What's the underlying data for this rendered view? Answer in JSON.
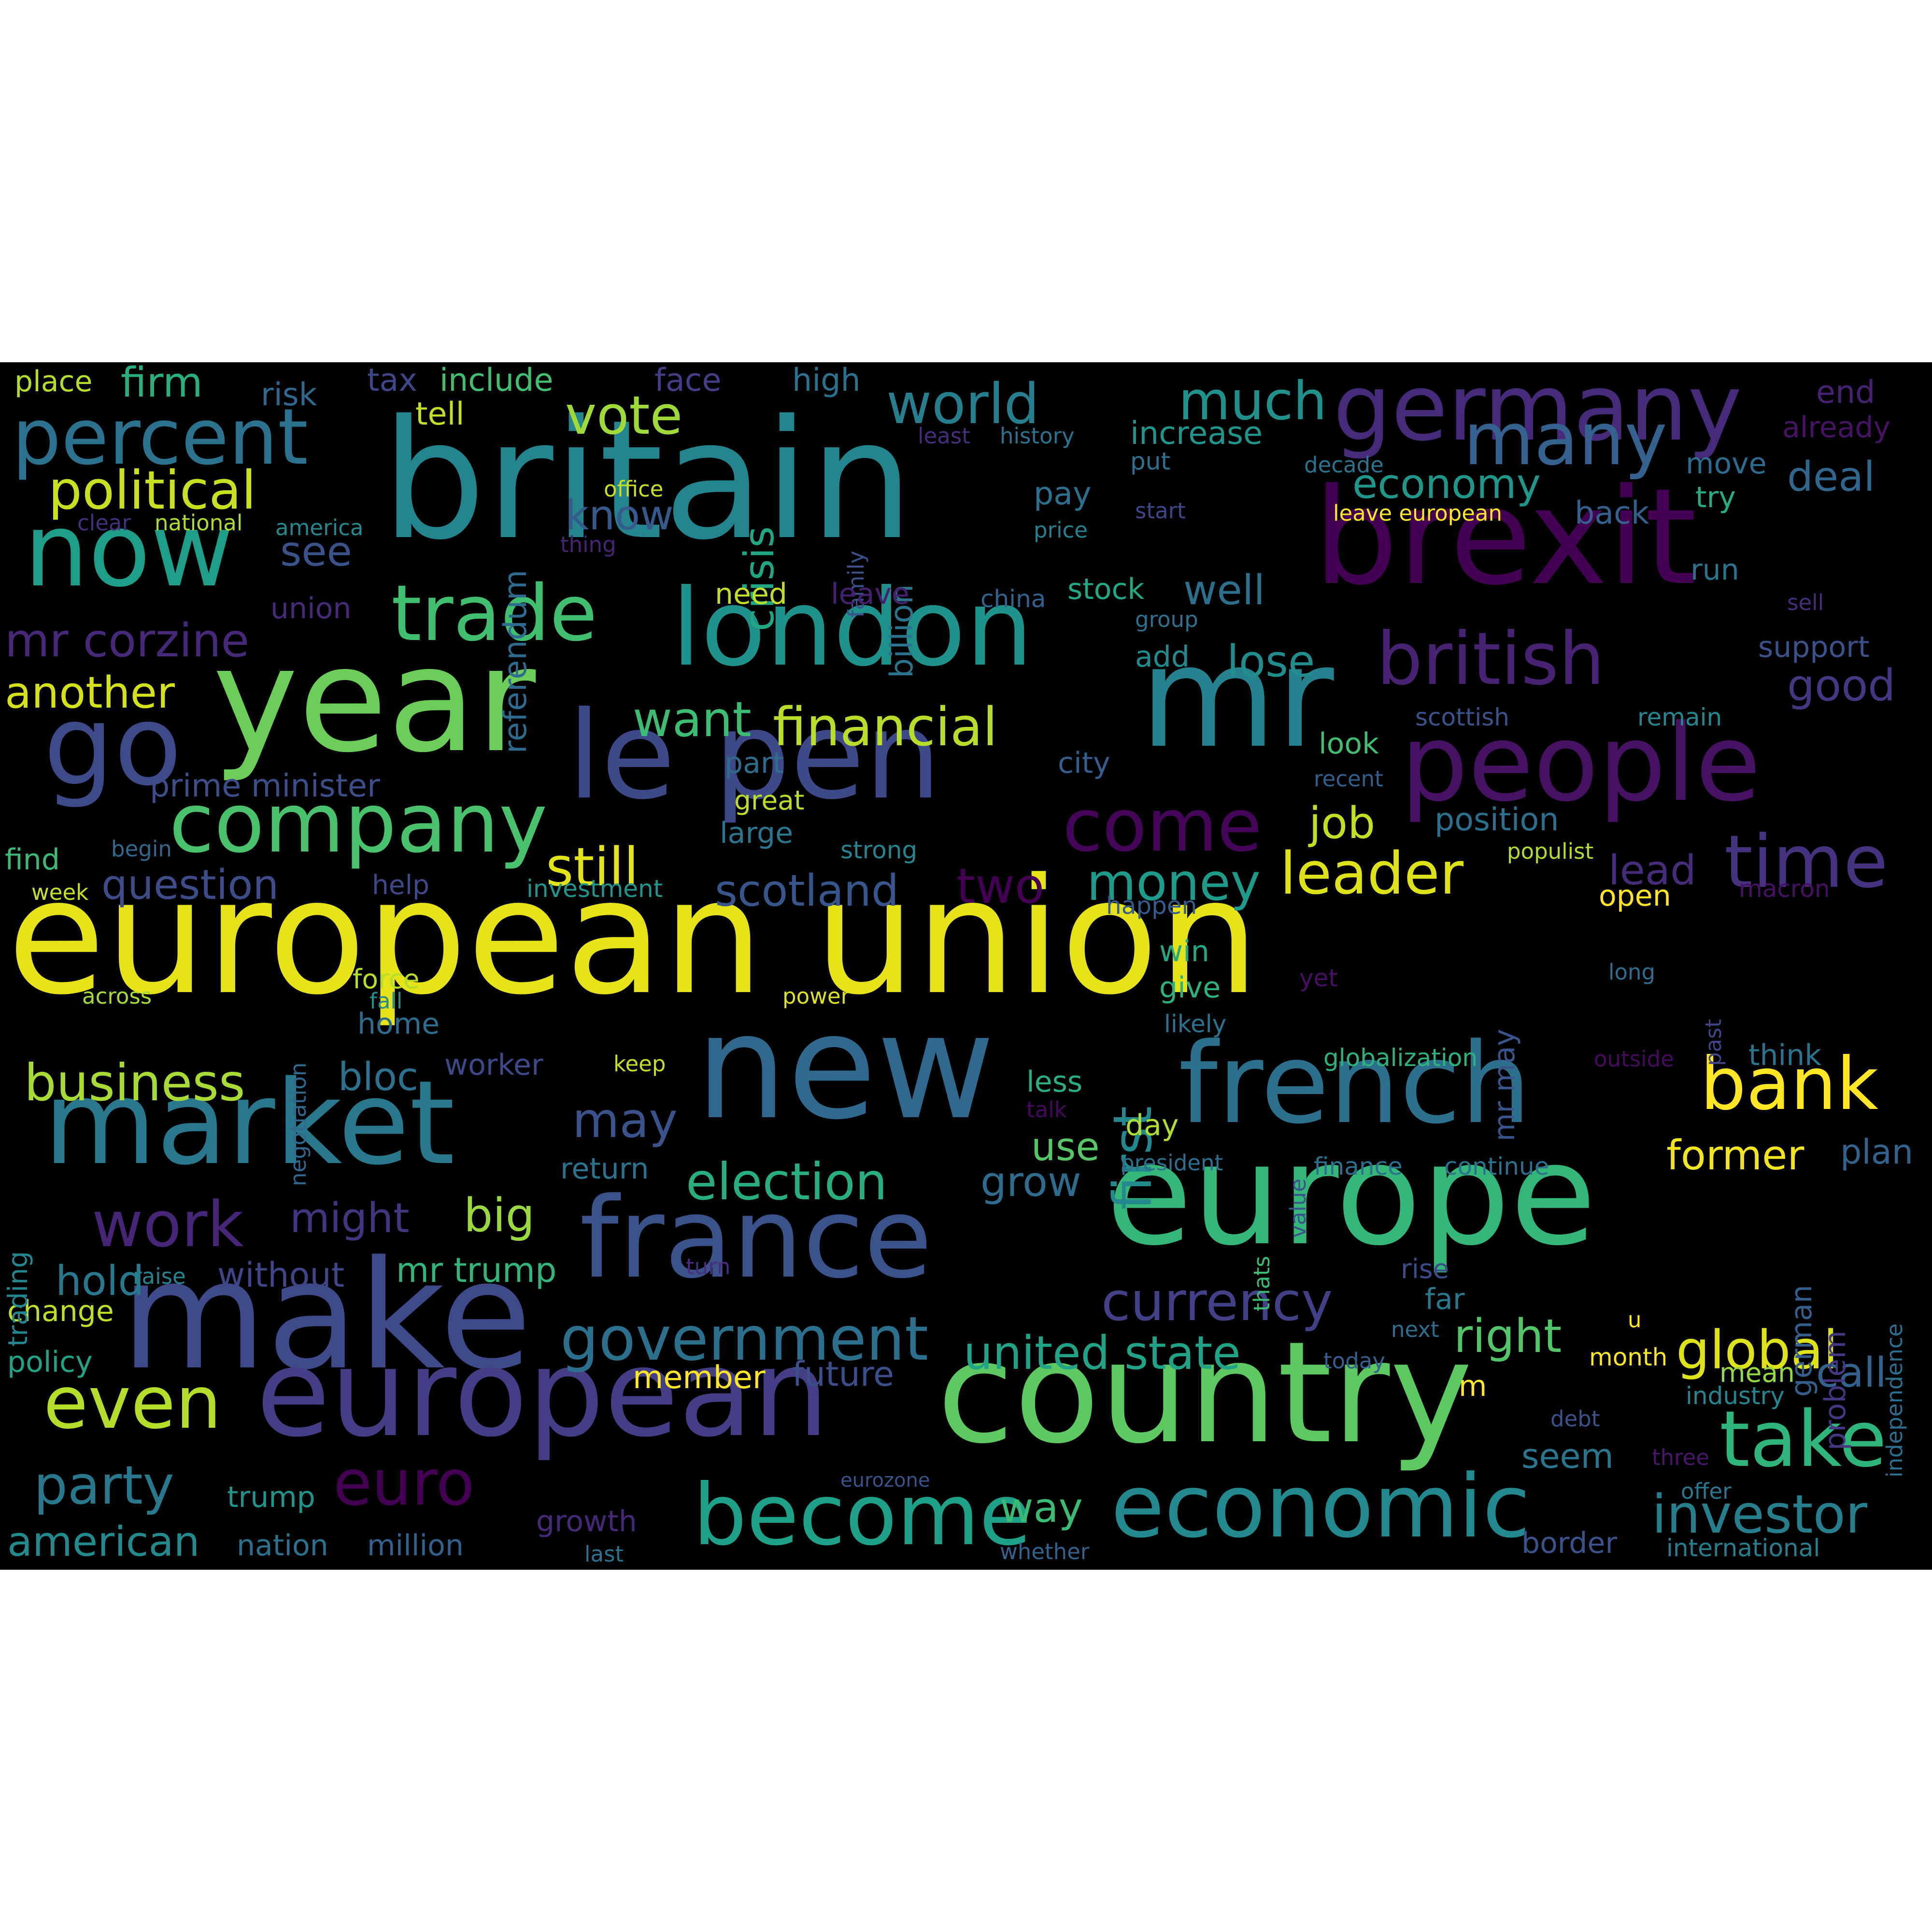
{
  "background_color": "#000000",
  "colormap": "viridis",
  "words": [
    {
      "text": "european union",
      "color": "#e6e419"
    },
    {
      "text": "britain",
      "color": "#25858e"
    },
    {
      "text": "europe",
      "color": "#35b779"
    },
    {
      "text": "brexit",
      "color": "#440154"
    },
    {
      "text": "make",
      "color": "#3e4a89"
    },
    {
      "text": "country",
      "color": "#5ec962"
    },
    {
      "text": "new",
      "color": "#31688e"
    },
    {
      "text": "year",
      "color": "#6ccd5a"
    },
    {
      "text": "mr",
      "color": "#26828e"
    },
    {
      "text": "european",
      "color": "#433e85"
    },
    {
      "text": "le pen",
      "color": "#3e4989"
    },
    {
      "text": "market",
      "color": "#2a788e"
    },
    {
      "text": "london",
      "color": "#20928c"
    },
    {
      "text": "people",
      "color": "#471164"
    },
    {
      "text": "france",
      "color": "#3b528b"
    },
    {
      "text": "french",
      "color": "#2d708e"
    },
    {
      "text": "germany",
      "color": "#472a7a"
    },
    {
      "text": "go",
      "color": "#3e4a89"
    },
    {
      "text": "now",
      "color": "#1f9e89"
    },
    {
      "text": "percent",
      "color": "#2c728e"
    },
    {
      "text": "economic",
      "color": "#23898e"
    },
    {
      "text": "company",
      "color": "#4ac16d"
    },
    {
      "text": "become",
      "color": "#1fa088"
    },
    {
      "text": "many",
      "color": "#34618d"
    },
    {
      "text": "trade",
      "color": "#42be71"
    },
    {
      "text": "take",
      "color": "#2fb47c"
    },
    {
      "text": "british",
      "color": "#482374"
    },
    {
      "text": "time",
      "color": "#46327e"
    },
    {
      "text": "come",
      "color": "#450559"
    },
    {
      "text": "bank",
      "color": "#fde725"
    },
    {
      "text": "world",
      "color": "#277f8e"
    },
    {
      "text": "even",
      "color": "#b5de2b"
    },
    {
      "text": "euro",
      "color": "#440154"
    },
    {
      "text": "work",
      "color": "#482677"
    },
    {
      "text": "government",
      "color": "#2d708e"
    },
    {
      "text": "political",
      "color": "#c8e020"
    },
    {
      "text": "financial",
      "color": "#b8de29"
    },
    {
      "text": "leader",
      "color": "#dde318"
    },
    {
      "text": "much",
      "color": "#21918c"
    },
    {
      "text": "currency",
      "color": "#424086"
    },
    {
      "text": "investor",
      "color": "#277f8e"
    },
    {
      "text": "vote",
      "color": "#a0da39"
    },
    {
      "text": "global",
      "color": "#dde318"
    },
    {
      "text": "election",
      "color": "#29af7f"
    },
    {
      "text": "party",
      "color": "#2a788e"
    },
    {
      "text": "money",
      "color": "#1e9b8a"
    },
    {
      "text": "business",
      "color": "#a8db34"
    },
    {
      "text": "still",
      "color": "#e2e418"
    },
    {
      "text": "scotland",
      "color": "#39568c"
    },
    {
      "text": "first",
      "color": "#23898e"
    },
    {
      "text": "want",
      "color": "#3dbc74"
    },
    {
      "text": "two",
      "color": "#440154"
    },
    {
      "text": "may",
      "color": "#3b528b"
    },
    {
      "text": "crisis",
      "color": "#22a785"
    },
    {
      "text": "economy",
      "color": "#1f988b"
    },
    {
      "text": "mr corzine",
      "color": "#482878"
    },
    {
      "text": "big",
      "color": "#9bd93c"
    },
    {
      "text": "question",
      "color": "#3e4c8a"
    },
    {
      "text": "job",
      "color": "#c2df23"
    },
    {
      "text": "right",
      "color": "#54c568"
    },
    {
      "text": "united state",
      "color": "#20a386"
    },
    {
      "text": "another",
      "color": "#d5e21a"
    },
    {
      "text": "good",
      "color": "#453781"
    },
    {
      "text": "former",
      "color": "#f1e51d"
    },
    {
      "text": "american",
      "color": "#238a8d"
    },
    {
      "text": "lose",
      "color": "#228d8d"
    },
    {
      "text": "deal",
      "color": "#31678e"
    },
    {
      "text": "lead",
      "color": "#472c7a"
    },
    {
      "text": "firm",
      "color": "#2ab07f"
    },
    {
      "text": "see",
      "color": "#3b528b"
    },
    {
      "text": "know",
      "color": "#375a8c"
    },
    {
      "text": "hold",
      "color": "#29798e"
    },
    {
      "text": "might",
      "color": "#453581"
    },
    {
      "text": "grow",
      "color": "#2f6c8e"
    },
    {
      "text": "well",
      "color": "#2e6f8e"
    },
    {
      "text": "use",
      "color": "#56c667"
    },
    {
      "text": "call",
      "color": "#33638d"
    },
    {
      "text": "way",
      "color": "#3cbb75"
    },
    {
      "text": "mr trump",
      "color": "#32b67a"
    },
    {
      "text": "without",
      "color": "#3f4788"
    },
    {
      "text": "bloc",
      "color": "#2d718e"
    },
    {
      "text": "plan",
      "color": "#33638d"
    },
    {
      "text": "pay",
      "color": "#2d718e"
    },
    {
      "text": "future",
      "color": "#3c4f8a"
    },
    {
      "text": "seem",
      "color": "#2b758e"
    },
    {
      "text": "billion",
      "color": "#2c738e"
    },
    {
      "text": "referendum",
      "color": "#2f6b8e"
    },
    {
      "text": "prime minister",
      "color": "#3d4e8a"
    },
    {
      "text": "member",
      "color": "#fde725"
    },
    {
      "text": "tell",
      "color": "#c2df23"
    },
    {
      "text": "tax",
      "color": "#3f4788"
    },
    {
      "text": "include",
      "color": "#42be71"
    },
    {
      "text": "increase",
      "color": "#1f958b"
    },
    {
      "text": "risk",
      "color": "#31688e"
    },
    {
      "text": "face",
      "color": "#433e85"
    },
    {
      "text": "high",
      "color": "#2c728e"
    },
    {
      "text": "place",
      "color": "#b5de2b"
    },
    {
      "text": "end",
      "color": "#482173"
    },
    {
      "text": "already",
      "color": "#471365"
    },
    {
      "text": "move",
      "color": "#2f6b8e"
    },
    {
      "text": "try",
      "color": "#26ad81"
    },
    {
      "text": "back",
      "color": "#355f8d"
    },
    {
      "text": "run",
      "color": "#2c738e"
    },
    {
      "text": "need",
      "color": "#c0df25"
    },
    {
      "text": "stock",
      "color": "#22a884"
    },
    {
      "text": "add",
      "color": "#228b8d"
    },
    {
      "text": "support",
      "color": "#3b528b"
    },
    {
      "text": "look",
      "color": "#40bd72"
    },
    {
      "text": "city",
      "color": "#355e8d"
    },
    {
      "text": "part",
      "color": "#2f6c8e"
    },
    {
      "text": "large",
      "color": "#2b758e"
    },
    {
      "text": "position",
      "color": "#2d708e"
    },
    {
      "text": "open",
      "color": "#fde725"
    },
    {
      "text": "win",
      "color": "#22a884"
    },
    {
      "text": "give",
      "color": "#2db27d"
    },
    {
      "text": "mr may",
      "color": "#3a548c"
    },
    {
      "text": "less",
      "color": "#29af7f"
    },
    {
      "text": "day",
      "color": "#b0dd2f"
    },
    {
      "text": "think",
      "color": "#2b748e"
    },
    {
      "text": "worker",
      "color": "#3e4a89"
    },
    {
      "text": "force",
      "color": "#b5de2b"
    },
    {
      "text": "home",
      "color": "#2f6c8e"
    },
    {
      "text": "change",
      "color": "#bddf26"
    },
    {
      "text": "policy",
      "color": "#20a486"
    },
    {
      "text": "trump",
      "color": "#1f958b"
    },
    {
      "text": "nation",
      "color": "#2c728e"
    },
    {
      "text": "million",
      "color": "#34618d"
    },
    {
      "text": "growth",
      "color": "#482979"
    },
    {
      "text": "return",
      "color": "#2c738e"
    },
    {
      "text": "help",
      "color": "#3e4989"
    },
    {
      "text": "find",
      "color": "#3aba76"
    },
    {
      "text": "mean",
      "color": "#95d840"
    },
    {
      "text": "border",
      "color": "#3b528b"
    },
    {
      "text": "international",
      "color": "#277f8e"
    },
    {
      "text": "industry",
      "color": "#24868e"
    },
    {
      "text": "german",
      "color": "#355f8d"
    },
    {
      "text": "problem",
      "color": "#453781"
    },
    {
      "text": "rise",
      "color": "#3e4c8a"
    },
    {
      "text": "far",
      "color": "#2a788e"
    },
    {
      "text": "month",
      "color": "#f8e621"
    },
    {
      "text": "next",
      "color": "#2f6c8e"
    },
    {
      "text": "leave european",
      "color": "#fde725"
    },
    {
      "text": "history",
      "color": "#2c738e"
    },
    {
      "text": "least",
      "color": "#472d7b"
    },
    {
      "text": "decade",
      "color": "#2c738e"
    },
    {
      "text": "put",
      "color": "#2d718e"
    },
    {
      "text": "start",
      "color": "#3f4788"
    },
    {
      "text": "price",
      "color": "#27808e"
    },
    {
      "text": "office",
      "color": "#c8e020"
    },
    {
      "text": "national",
      "color": "#addc30"
    },
    {
      "text": "clear",
      "color": "#46307e"
    },
    {
      "text": "america",
      "color": "#23898e"
    },
    {
      "text": "thing",
      "color": "#482475"
    },
    {
      "text": "family",
      "color": "#3b528b"
    },
    {
      "text": "union",
      "color": "#472a7a"
    },
    {
      "text": "leave",
      "color": "#482071"
    },
    {
      "text": "china",
      "color": "#33638d"
    },
    {
      "text": "group",
      "color": "#2d718e"
    },
    {
      "text": "sell",
      "color": "#472e7c"
    },
    {
      "text": "scottish",
      "color": "#3b528b"
    },
    {
      "text": "remain",
      "color": "#24878e"
    },
    {
      "text": "recent",
      "color": "#355e8d"
    },
    {
      "text": "great",
      "color": "#b8de29"
    },
    {
      "text": "strong",
      "color": "#25848e"
    },
    {
      "text": "populist",
      "color": "#b0dd2f"
    },
    {
      "text": "begin",
      "color": "#31688e"
    },
    {
      "text": "week",
      "color": "#c8e020"
    },
    {
      "text": "investment",
      "color": "#1f968b"
    },
    {
      "text": "happen",
      "color": "#375b8d"
    },
    {
      "text": "macron",
      "color": "#471164"
    },
    {
      "text": "across",
      "color": "#a5db36"
    },
    {
      "text": "negotiation",
      "color": "#31688e"
    },
    {
      "text": "fall",
      "color": "#238a8d"
    },
    {
      "text": "power",
      "color": "#dde318"
    },
    {
      "text": "likely",
      "color": "#2c728e"
    },
    {
      "text": "yet",
      "color": "#471063"
    },
    {
      "text": "long",
      "color": "#2f6c8e"
    },
    {
      "text": "past",
      "color": "#404688"
    },
    {
      "text": "keep",
      "color": "#c2df23"
    },
    {
      "text": "globalization",
      "color": "#2db27d"
    },
    {
      "text": "outside",
      "color": "#460b5e"
    },
    {
      "text": "talk",
      "color": "#46085c"
    },
    {
      "text": "president",
      "color": "#2d708e"
    },
    {
      "text": "value",
      "color": "#3b528b"
    },
    {
      "text": "finance",
      "color": "#2d708e"
    },
    {
      "text": "continue",
      "color": "#2d718e"
    },
    {
      "text": "trading",
      "color": "#24868e"
    },
    {
      "text": "thats",
      "color": "#3dbc74"
    },
    {
      "text": "turn",
      "color": "#472f7d"
    },
    {
      "text": "raise",
      "color": "#26828e"
    },
    {
      "text": "u",
      "color": "#fde725"
    },
    {
      "text": "today",
      "color": "#355f8d"
    },
    {
      "text": "independence",
      "color": "#2e6e8e"
    },
    {
      "text": "m",
      "color": "#fde725"
    },
    {
      "text": "debt",
      "color": "#3b528b"
    },
    {
      "text": "three",
      "color": "#481769"
    },
    {
      "text": "offer",
      "color": "#2a778e"
    },
    {
      "text": "eurozone",
      "color": "#3b528b"
    },
    {
      "text": "last",
      "color": "#2c728e"
    },
    {
      "text": "whether",
      "color": "#33638d"
    }
  ]
}
